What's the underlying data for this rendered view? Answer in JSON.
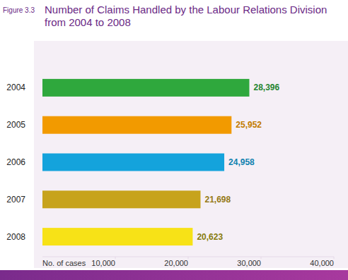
{
  "chart_data": {
    "type": "bar",
    "orientation": "horizontal",
    "figure_label": "Figure 3.3",
    "title": "Number of Claims Handled by the Labour Relations Division from 2004 to 2008",
    "x_label": "No. of cases",
    "categories": [
      "2004",
      "2005",
      "2006",
      "2007",
      "2008"
    ],
    "values": [
      28396,
      25952,
      24958,
      21698,
      20623
    ],
    "value_labels": [
      "28,396",
      "25,952",
      "24,958",
      "21,698",
      "20,623"
    ],
    "colors": [
      "#2fa83d",
      "#f29a00",
      "#14a3dc",
      "#c7a31c",
      "#f7e217"
    ],
    "xlim": [
      0,
      40000
    ],
    "xticks": [
      {
        "value": 10000,
        "label": "10,000"
      },
      {
        "value": 20000,
        "label": "20,000"
      },
      {
        "value": 30000,
        "label": "30,000"
      },
      {
        "value": 40000,
        "label": "40,000"
      }
    ],
    "grid": false,
    "data_labels": true
  }
}
